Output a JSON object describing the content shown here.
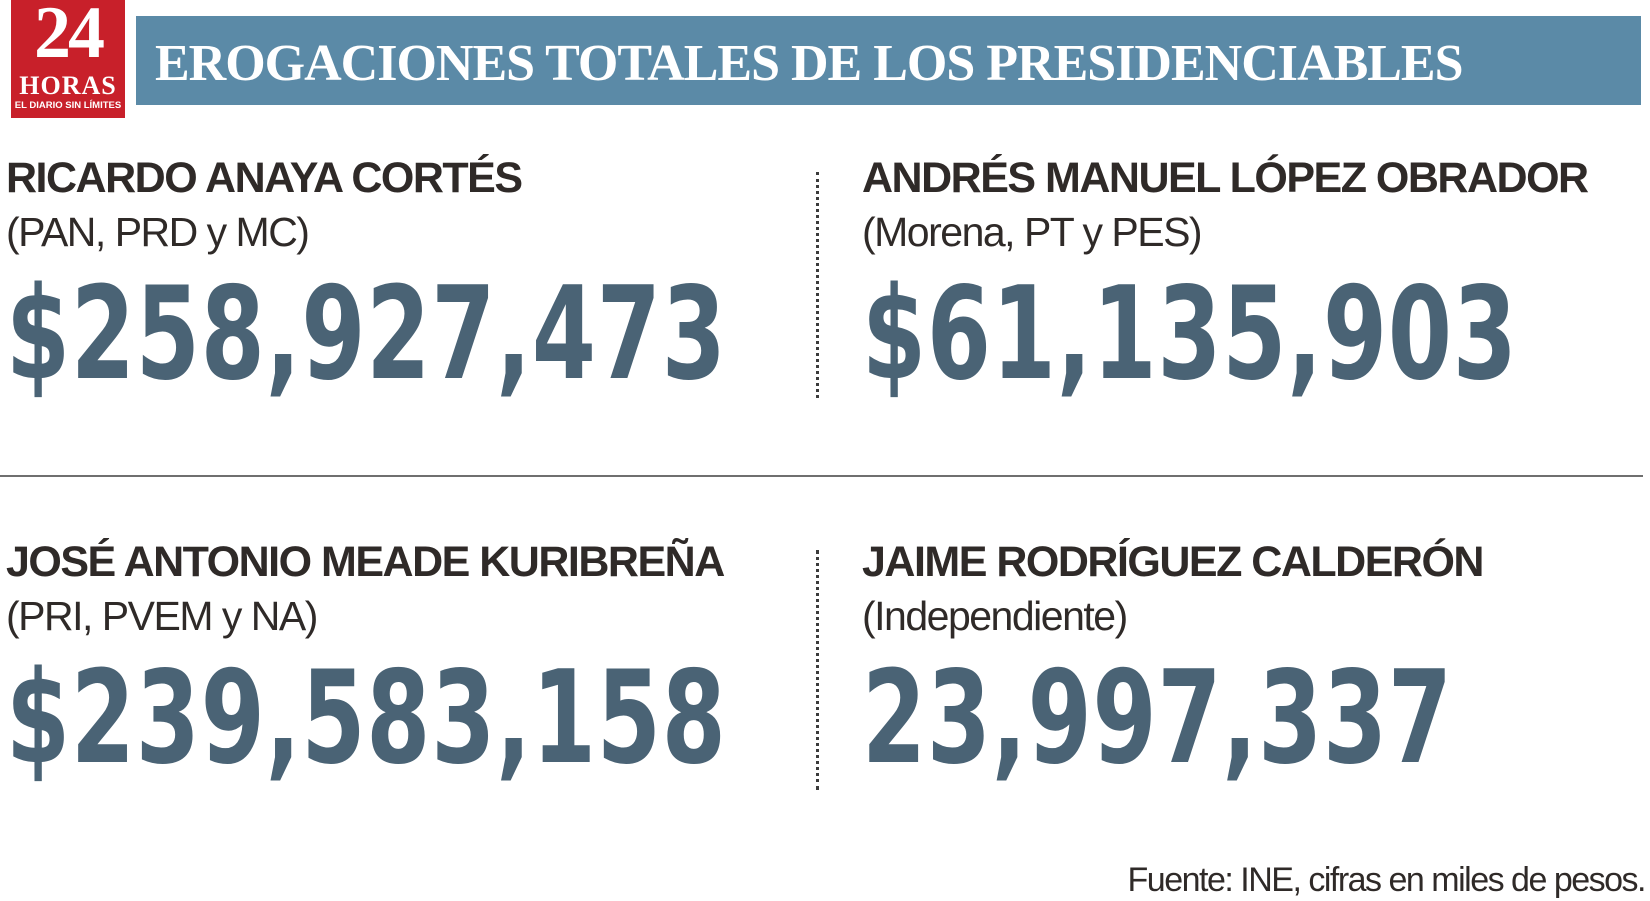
{
  "logo": {
    "number": "24",
    "word": "HORAS",
    "tagline": "EL DIARIO SIN LÍMITES",
    "color": "#c8202a"
  },
  "header": {
    "title": "EROGACIONES TOTALES DE LOS PRESIDENCIABLES",
    "bar_color": "#5b8aa7"
  },
  "candidates": [
    {
      "name": "RICARDO ANAYA CORTÉS",
      "party": "(PAN, PRD y MC)",
      "amount": "$258,927,473"
    },
    {
      "name": "ANDRÉS MANUEL LÓPEZ OBRADOR",
      "party": "(Morena, PT y PES)",
      "amount": "$61,135,903"
    },
    {
      "name": "JOSÉ ANTONIO MEADE KURIBREÑA",
      "party": "(PRI, PVEM y NA)",
      "amount": "$239,583,158"
    },
    {
      "name": "JAIME RODRÍGUEZ CALDERÓN",
      "party": "(Independiente)",
      "amount": "23,997,337"
    }
  ],
  "amount_color": "#4a6375",
  "source": "Fuente: INE, cifras en miles de pesos."
}
